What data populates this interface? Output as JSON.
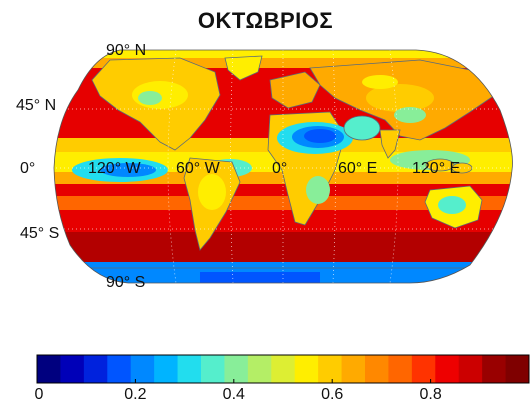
{
  "title": "ΟΚΤΩΒΡΙΟΣ",
  "map": {
    "projection": "robinson-like",
    "latitude_labels": [
      "90° N",
      "45° N",
      "0°",
      "45° S",
      "90° S"
    ],
    "longitude_labels": [
      "120° W",
      "60° W",
      "0°",
      "60° E",
      "120° E"
    ]
  },
  "colorbar": {
    "min": 0,
    "max": 1,
    "tick_labels": [
      "0",
      "0.2",
      "0.4",
      "0.6",
      "0.8"
    ],
    "colors": [
      "#00007f",
      "#0000b8",
      "#0022dd",
      "#0055ff",
      "#0088ff",
      "#00b4ff",
      "#22ddee",
      "#55eecc",
      "#88ee99",
      "#b4ee66",
      "#ddee33",
      "#ffee00",
      "#ffcc00",
      "#ffaa00",
      "#ff8800",
      "#ff6600",
      "#ff3300",
      "#ee0000",
      "#cc0000",
      "#990000",
      "#7f0000"
    ]
  },
  "colors": {
    "ocean_high": "#e60000",
    "land_outline": "#5a6a7a",
    "high_latitude_band": "#ffee00",
    "equatorial_low": "#22ddee",
    "sahara_low": "#0055ff",
    "southern_deep": "#990000"
  }
}
